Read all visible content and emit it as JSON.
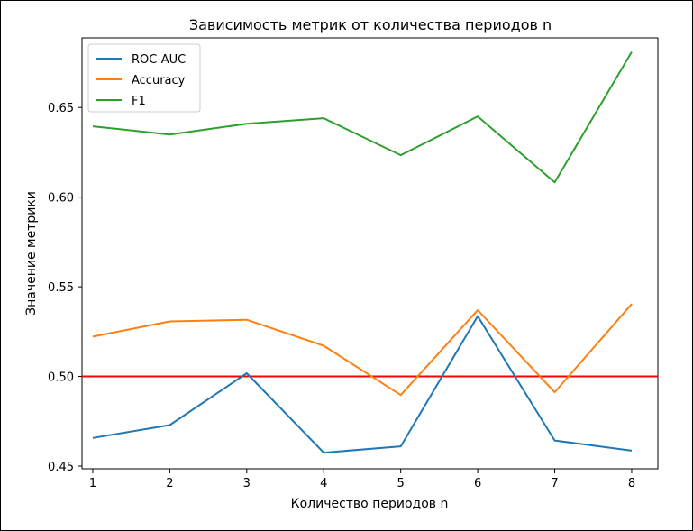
{
  "chart_data": {
    "type": "line",
    "title": "Зависимость метрик от количества периодов n",
    "xlabel": "Количество периодов n",
    "ylabel": "Значение метрики",
    "x": [
      1,
      2,
      3,
      4,
      5,
      6,
      7,
      8
    ],
    "xlim": [
      0.86,
      8.34
    ],
    "ylim": [
      0.4485,
      0.6888
    ],
    "yticks": [
      "0.45",
      "0.50",
      "0.55",
      "0.60",
      "0.65"
    ],
    "xticks": [
      "1",
      "2",
      "3",
      "4",
      "5",
      "6",
      "7",
      "8"
    ],
    "series": [
      {
        "name": "ROC-AUC",
        "color": "#1f77b4",
        "values": [
          0.4657,
          0.4729,
          0.5018,
          0.4575,
          0.461,
          0.5336,
          0.4643,
          0.4586
        ]
      },
      {
        "name": "Accuracy",
        "color": "#ff7f0e",
        "values": [
          0.5222,
          0.5307,
          0.5316,
          0.5171,
          0.4896,
          0.537,
          0.4912,
          0.5404
        ]
      },
      {
        "name": "F1",
        "color": "#2ca02c",
        "values": [
          0.6395,
          0.6349,
          0.6409,
          0.644,
          0.6234,
          0.645,
          0.6082,
          0.681
        ]
      }
    ],
    "reference_line": {
      "y": 0.5,
      "color": "#ff0000"
    },
    "legend_position": "top-left",
    "grid": false
  }
}
